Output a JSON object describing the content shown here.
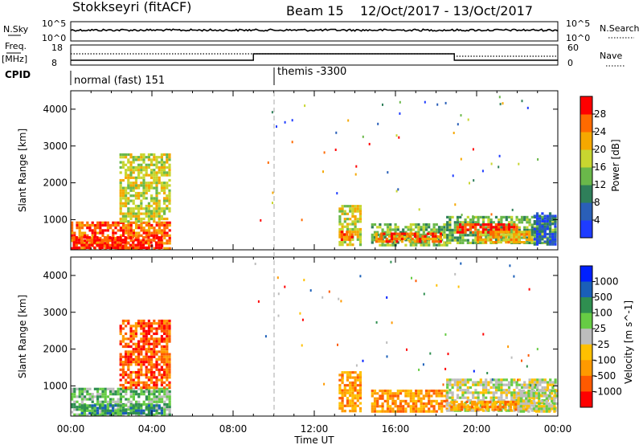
{
  "header": {
    "radar": "Stokkseyri (fitACF)",
    "beam": "Beam 15",
    "dates": "12/Oct/2017 - 13/Oct/2017"
  },
  "noise_panel": {
    "left_label": "N.Sky",
    "right_label": "N.Search",
    "left_ticks": [
      "10^5",
      "10^0"
    ],
    "right_ticks": [
      "10^5",
      "10^0"
    ]
  },
  "freq_panel": {
    "left_label_top": "Freq.",
    "left_label_unit": "[MHz]",
    "right_label": "Nave",
    "left_ticks": [
      "18",
      "8"
    ],
    "right_ticks": [
      "60",
      "0"
    ]
  },
  "cpid": {
    "label": "CPID",
    "segments": [
      {
        "name": "normal (fast) 151",
        "start": 0,
        "end": 10
      },
      {
        "name": "themis -3300",
        "start": 10,
        "end": 24
      }
    ]
  },
  "colors": {
    "power_scale": [
      "#1e3cff",
      "#2a5fb8",
      "#2f7f5a",
      "#6ab84a",
      "#c8d630",
      "#f5a800",
      "#ff6a00",
      "#ff0000"
    ],
    "velocity_scale": [
      "#0020ff",
      "#1a5fb8",
      "#2f8f50",
      "#66cc44",
      "#bdbdbd",
      "#ffc000",
      "#ff9a00",
      "#ff5a00",
      "#ff0000"
    ]
  },
  "chart_data": [
    {
      "type": "heatmap",
      "name": "power",
      "ylabel": "Slant Range [km]",
      "ylim": [
        180,
        4500
      ],
      "xlim": [
        0,
        24
      ],
      "yticks": [
        "1000",
        "2000",
        "3000",
        "4000"
      ],
      "ytick_values": [
        1000,
        2000,
        3000,
        4000
      ],
      "colorbar_label": "Power [dB]",
      "colorbar_ticks": [
        "4",
        "8",
        "12",
        "16",
        "20",
        "24",
        "28"
      ],
      "colorbar_range": [
        0,
        32
      ],
      "regions": [
        {
          "t0": 0.0,
          "t1": 4.9,
          "r0": 200,
          "r1": 950,
          "c": 6
        },
        {
          "t0": 0.1,
          "t1": 4.5,
          "r0": 200,
          "r1": 550,
          "c": 7
        },
        {
          "t0": 2.4,
          "t1": 4.9,
          "r0": 900,
          "r1": 2800,
          "c": 4
        },
        {
          "t0": 13.2,
          "t1": 14.3,
          "r0": 300,
          "r1": 1400,
          "c": 4
        },
        {
          "t0": 13.3,
          "t1": 13.9,
          "r0": 400,
          "r1": 700,
          "c": 6
        },
        {
          "t0": 14.8,
          "t1": 18.6,
          "r0": 300,
          "r1": 900,
          "c": 3
        },
        {
          "t0": 15.0,
          "t1": 18.3,
          "r0": 350,
          "r1": 650,
          "c": 6
        },
        {
          "t0": 18.5,
          "t1": 24.0,
          "r0": 300,
          "r1": 1100,
          "c": 3
        },
        {
          "t0": 19.0,
          "t1": 22.0,
          "r0": 600,
          "r1": 900,
          "c": 7
        },
        {
          "t0": 20.0,
          "t1": 22.8,
          "r0": 350,
          "r1": 700,
          "c": 5
        },
        {
          "t0": 22.8,
          "t1": 24.0,
          "r0": 300,
          "r1": 1200,
          "c": 1
        }
      ]
    },
    {
      "type": "heatmap",
      "name": "velocity",
      "ylabel": "Slant Range [km]",
      "xlabel": "Time UT",
      "ylim": [
        180,
        4500
      ],
      "xlim": [
        0,
        24
      ],
      "yticks": [
        "1000",
        "2000",
        "3000",
        "4000"
      ],
      "ytick_values": [
        1000,
        2000,
        3000,
        4000
      ],
      "xticks": [
        "00:00",
        "04:00",
        "08:00",
        "12:00",
        "16:00",
        "20:00",
        "00:00"
      ],
      "xtick_values": [
        0,
        4,
        8,
        12,
        16,
        20,
        24
      ],
      "colorbar_label": "Velocity [m s^-1]",
      "colorbar_ticks": [
        "1000",
        "500",
        "100",
        "25",
        "-25",
        "-100",
        "-500",
        "-1000"
      ],
      "regions": [
        {
          "t0": 0.0,
          "t1": 5.0,
          "r0": 200,
          "r1": 950,
          "c": 3
        },
        {
          "t0": 0.5,
          "t1": 4.5,
          "r0": 200,
          "r1": 500,
          "c": 2
        },
        {
          "t0": 2.4,
          "t1": 4.9,
          "r0": 900,
          "r1": 2800,
          "c": 7
        },
        {
          "t0": 13.2,
          "t1": 14.3,
          "r0": 300,
          "r1": 1400,
          "c": 6
        },
        {
          "t0": 14.8,
          "t1": 18.6,
          "r0": 300,
          "r1": 900,
          "c": 6
        },
        {
          "t0": 18.5,
          "t1": 24.0,
          "r0": 300,
          "r1": 1200,
          "c": 4
        },
        {
          "t0": 18.7,
          "t1": 22.5,
          "r0": 300,
          "r1": 600,
          "c": 6
        },
        {
          "t0": 22.0,
          "t1": 24.0,
          "r0": 300,
          "r1": 900,
          "c": 4
        }
      ]
    }
  ]
}
